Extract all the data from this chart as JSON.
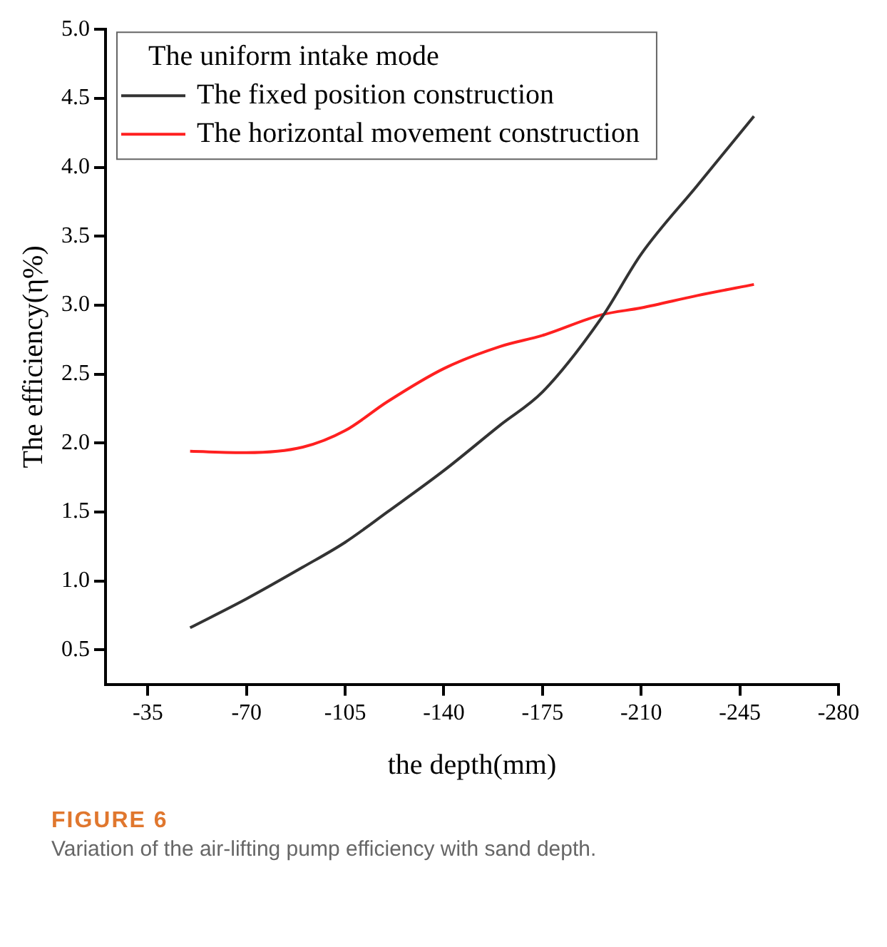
{
  "chart_data": {
    "type": "line",
    "xlabel": "the depth(mm)",
    "ylabel": "The efficiency(η%)",
    "legend_title": "The uniform intake mode",
    "legend": "top left",
    "grid": false,
    "marker": "none",
    "line_style": "solid",
    "xlim": [
      -20,
      -280
    ],
    "xticks": [
      -35,
      -70,
      -105,
      -140,
      -175,
      -210,
      -245,
      -280
    ],
    "ylim": [
      0.25,
      5.0
    ],
    "yticks": [
      {
        "value": 0.5,
        "label": "0.5"
      },
      {
        "value": 1.0,
        "label": "1.0"
      },
      {
        "value": 1.5,
        "label": "1.5"
      },
      {
        "value": 2.0,
        "label": "2.0"
      },
      {
        "value": 2.5,
        "label": "2.5"
      },
      {
        "value": 3.0,
        "label": "3.0"
      },
      {
        "value": 3.5,
        "label": "3.5"
      },
      {
        "value": 4.0,
        "label": "4.0"
      },
      {
        "value": 4.5,
        "label": "4.5"
      },
      {
        "value": 5.0,
        "label": "5.0"
      }
    ],
    "x": [
      -50,
      -70,
      -90,
      -105,
      -120,
      -140,
      -160,
      -175,
      -196,
      -210,
      -230,
      -250
    ],
    "series": [
      {
        "name": "The fixed position construction",
        "color": "#333333",
        "values": [
          0.66,
          0.87,
          1.1,
          1.28,
          1.5,
          1.8,
          2.13,
          2.37,
          2.91,
          3.37,
          3.87,
          4.37
        ]
      },
      {
        "name": "The horizontal movement construction",
        "color": "#ff2020",
        "values": [
          1.94,
          1.93,
          1.97,
          2.09,
          2.3,
          2.54,
          2.7,
          2.78,
          2.93,
          2.98,
          3.07,
          3.15
        ]
      }
    ],
    "annotations": [
      "FIGURE 6",
      "Variation of the air-lifting pump efficiency with sand depth."
    ]
  }
}
